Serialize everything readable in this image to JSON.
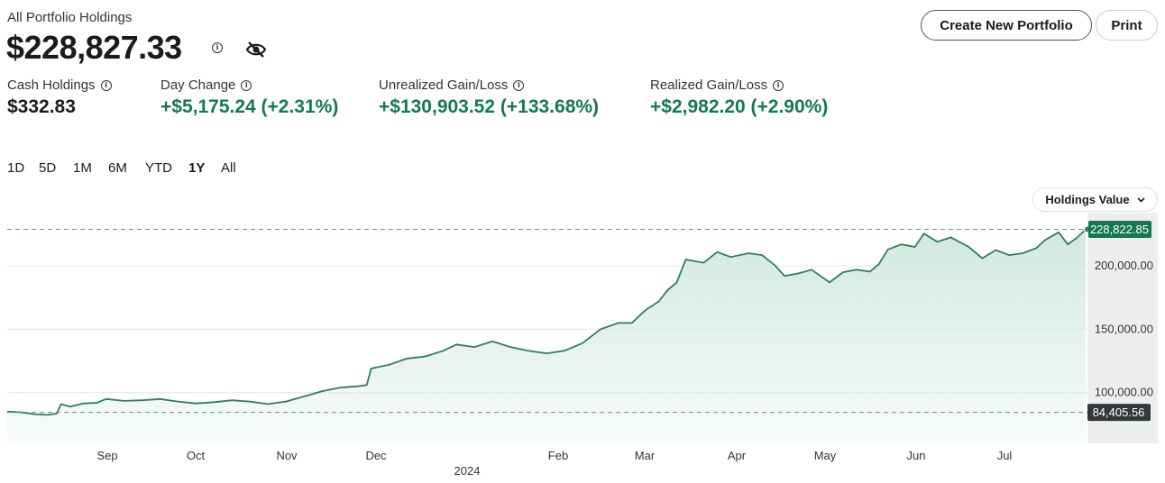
{
  "header": {
    "title": "All Portfolio Holdings",
    "total": "$228,827.33",
    "info_icon": "i",
    "create_button": "Create New Portfolio",
    "print_button": "Print"
  },
  "stats": [
    {
      "label": "Cash Holdings",
      "value": "$332.83",
      "positive": false
    },
    {
      "label": "Day Change",
      "value": "+$5,175.24 (+2.31%)",
      "positive": true
    },
    {
      "label": "Unrealized Gain/Loss",
      "value": "+$130,903.52 (+133.68%)",
      "positive": true
    },
    {
      "label": "Realized Gain/Loss",
      "value": "+$2,982.20 (+2.90%)",
      "positive": true
    }
  ],
  "ranges": [
    "1D",
    "5D",
    "1M",
    "6M",
    "YTD",
    "1Y",
    "All"
  ],
  "active_range": "1Y",
  "dropdown": {
    "label": "Holdings Value",
    "icon": "chevron-down-icon"
  },
  "colors": {
    "accent": "#137a4f",
    "line": "#2f7d5b",
    "fill": "#e3f1ea",
    "min_badge": "#2f3a3a"
  },
  "chart_data": {
    "type": "area",
    "x_labels": [
      "Sep",
      "Oct",
      "Nov",
      "Dec",
      "Feb",
      "Mar",
      "Apr",
      "May",
      "Jun",
      "Jul"
    ],
    "year_label": "2024",
    "y_ticks": [
      100000,
      150000,
      200000
    ],
    "y_tick_labels": [
      "100,000.00",
      "150,000.00",
      "200,000.00"
    ],
    "ylim": [
      60000,
      242000
    ],
    "current_value": 228822.85,
    "current_label": "228,822.85",
    "min_value": 84405.56,
    "min_label": "84,405.56",
    "x_range": [
      0,
      12
    ],
    "series": [
      {
        "points": [
          [
            0.0,
            85000
          ],
          [
            0.15,
            84500
          ],
          [
            0.3,
            83000
          ],
          [
            0.45,
            82500
          ],
          [
            0.55,
            83500
          ],
          [
            0.6,
            91000
          ],
          [
            0.7,
            89000
          ],
          [
            0.85,
            91500
          ],
          [
            1.0,
            92000
          ],
          [
            1.1,
            95000
          ],
          [
            1.3,
            93500
          ],
          [
            1.5,
            94000
          ],
          [
            1.7,
            95000
          ],
          [
            1.9,
            93000
          ],
          [
            2.1,
            91500
          ],
          [
            2.3,
            92500
          ],
          [
            2.5,
            94000
          ],
          [
            2.7,
            93000
          ],
          [
            2.9,
            91000
          ],
          [
            3.1,
            93000
          ],
          [
            3.3,
            97000
          ],
          [
            3.5,
            101000
          ],
          [
            3.7,
            104000
          ],
          [
            3.9,
            105000
          ],
          [
            4.0,
            106000
          ],
          [
            4.05,
            119000
          ],
          [
            4.25,
            122000
          ],
          [
            4.45,
            127000
          ],
          [
            4.65,
            128500
          ],
          [
            4.85,
            133000
          ],
          [
            5.0,
            138000
          ],
          [
            5.2,
            136000
          ],
          [
            5.4,
            140500
          ],
          [
            5.6,
            136000
          ],
          [
            5.8,
            133000
          ],
          [
            6.0,
            131000
          ],
          [
            6.2,
            133000
          ],
          [
            6.4,
            139000
          ],
          [
            6.6,
            150000
          ],
          [
            6.8,
            155000
          ],
          [
            6.95,
            155000
          ],
          [
            7.1,
            165000
          ],
          [
            7.25,
            172000
          ],
          [
            7.35,
            181000
          ],
          [
            7.45,
            187000
          ],
          [
            7.55,
            205000
          ],
          [
            7.75,
            202500
          ],
          [
            7.9,
            211000
          ],
          [
            8.05,
            207000
          ],
          [
            8.25,
            210000
          ],
          [
            8.4,
            208500
          ],
          [
            8.55,
            200000
          ],
          [
            8.65,
            192000
          ],
          [
            8.8,
            194000
          ],
          [
            8.95,
            197000
          ],
          [
            9.15,
            187000
          ],
          [
            9.3,
            195000
          ],
          [
            9.45,
            197000
          ],
          [
            9.6,
            195500
          ],
          [
            9.7,
            201500
          ],
          [
            9.8,
            213000
          ],
          [
            9.95,
            217000
          ],
          [
            10.1,
            215000
          ],
          [
            10.2,
            225500
          ],
          [
            10.35,
            219000
          ],
          [
            10.5,
            222500
          ],
          [
            10.7,
            215000
          ],
          [
            10.85,
            206000
          ],
          [
            11.0,
            212500
          ],
          [
            11.15,
            208500
          ],
          [
            11.3,
            210000
          ],
          [
            11.45,
            214000
          ],
          [
            11.55,
            220500
          ],
          [
            11.7,
            226500
          ],
          [
            11.8,
            217000
          ],
          [
            11.9,
            222000
          ],
          [
            12.0,
            228822.85
          ]
        ]
      }
    ]
  }
}
